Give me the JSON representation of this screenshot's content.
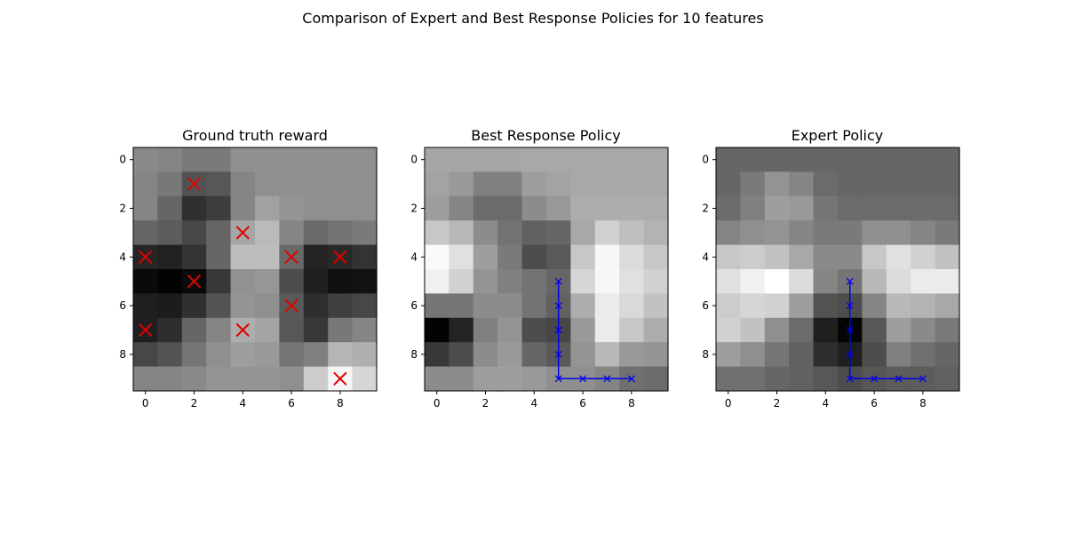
{
  "figure": {
    "title": "Comparison of Expert and Best Response Policies for 10 features"
  },
  "colors": {
    "marker": "#e00000",
    "path": "#0000ee",
    "frame": "#000000"
  },
  "chart_data": [
    {
      "type": "heatmap",
      "title": "Ground truth reward",
      "colormap": "gray",
      "xticks": [
        0,
        2,
        4,
        6,
        8
      ],
      "yticks": [
        0,
        2,
        4,
        6,
        8
      ],
      "xlim": [
        -0.5,
        9.5
      ],
      "ylim": [
        9.5,
        -0.5
      ],
      "grid": false,
      "values": [
        [
          0.54,
          0.52,
          0.48,
          0.48,
          0.56,
          0.56,
          0.56,
          0.56,
          0.56,
          0.56
        ],
        [
          0.52,
          0.47,
          0.32,
          0.34,
          0.52,
          0.56,
          0.56,
          0.56,
          0.56,
          0.56
        ],
        [
          0.52,
          0.4,
          0.19,
          0.24,
          0.52,
          0.63,
          0.58,
          0.56,
          0.56,
          0.56
        ],
        [
          0.4,
          0.36,
          0.28,
          0.4,
          0.65,
          0.73,
          0.52,
          0.41,
          0.45,
          0.48
        ],
        [
          0.15,
          0.13,
          0.2,
          0.4,
          0.74,
          0.74,
          0.41,
          0.14,
          0.16,
          0.2
        ],
        [
          0.04,
          0.01,
          0.04,
          0.22,
          0.57,
          0.59,
          0.3,
          0.12,
          0.06,
          0.07
        ],
        [
          0.12,
          0.11,
          0.19,
          0.33,
          0.58,
          0.56,
          0.35,
          0.18,
          0.25,
          0.28
        ],
        [
          0.12,
          0.18,
          0.4,
          0.52,
          0.68,
          0.64,
          0.34,
          0.22,
          0.47,
          0.52
        ],
        [
          0.28,
          0.33,
          0.46,
          0.56,
          0.62,
          0.6,
          0.46,
          0.5,
          0.71,
          0.69
        ],
        [
          0.52,
          0.52,
          0.54,
          0.58,
          0.58,
          0.58,
          0.56,
          0.8,
          0.96,
          0.84
        ]
      ],
      "markers": [
        {
          "x": 2,
          "y": 1
        },
        {
          "x": 4,
          "y": 3
        },
        {
          "x": 0,
          "y": 4
        },
        {
          "x": 6,
          "y": 4
        },
        {
          "x": 8,
          "y": 4
        },
        {
          "x": 2,
          "y": 5
        },
        {
          "x": 6,
          "y": 6
        },
        {
          "x": 0,
          "y": 7
        },
        {
          "x": 4,
          "y": 7
        },
        {
          "x": 8,
          "y": 9
        }
      ]
    },
    {
      "type": "heatmap",
      "title": "Best Response Policy",
      "colormap": "gray",
      "xticks": [
        0,
        2,
        4,
        6,
        8
      ],
      "yticks": [
        0,
        2,
        4,
        6,
        8
      ],
      "xlim": [
        -0.5,
        9.5
      ],
      "ylim": [
        9.5,
        -0.5
      ],
      "grid": false,
      "values": [
        [
          0.65,
          0.65,
          0.65,
          0.65,
          0.66,
          0.66,
          0.66,
          0.66,
          0.66,
          0.66
        ],
        [
          0.64,
          0.6,
          0.5,
          0.5,
          0.62,
          0.64,
          0.66,
          0.66,
          0.66,
          0.66
        ],
        [
          0.62,
          0.52,
          0.42,
          0.42,
          0.55,
          0.6,
          0.68,
          0.68,
          0.68,
          0.68
        ],
        [
          0.78,
          0.72,
          0.55,
          0.45,
          0.38,
          0.4,
          0.66,
          0.82,
          0.75,
          0.7
        ],
        [
          0.98,
          0.88,
          0.62,
          0.48,
          0.3,
          0.35,
          0.78,
          0.97,
          0.86,
          0.78
        ],
        [
          0.94,
          0.82,
          0.58,
          0.5,
          0.45,
          0.4,
          0.84,
          0.97,
          0.88,
          0.82
        ],
        [
          0.46,
          0.46,
          0.55,
          0.55,
          0.45,
          0.38,
          0.68,
          0.92,
          0.85,
          0.76
        ],
        [
          0.01,
          0.14,
          0.5,
          0.58,
          0.3,
          0.28,
          0.6,
          0.92,
          0.78,
          0.68
        ],
        [
          0.22,
          0.3,
          0.55,
          0.6,
          0.4,
          0.35,
          0.58,
          0.72,
          0.6,
          0.58
        ],
        [
          0.55,
          0.55,
          0.62,
          0.62,
          0.6,
          0.56,
          0.56,
          0.52,
          0.44,
          0.42
        ]
      ],
      "path": {
        "x": [
          5,
          5,
          5,
          5,
          5,
          6,
          7,
          8
        ],
        "y": [
          5,
          6,
          7,
          8,
          9,
          9,
          9,
          9
        ]
      }
    },
    {
      "type": "heatmap",
      "title": "Expert Policy",
      "colormap": "gray",
      "xticks": [
        0,
        2,
        4,
        6,
        8
      ],
      "yticks": [
        0,
        2,
        4,
        6,
        8
      ],
      "xlim": [
        -0.5,
        9.5
      ],
      "ylim": [
        9.5,
        -0.5
      ],
      "grid": false,
      "values": [
        [
          0.4,
          0.4,
          0.4,
          0.4,
          0.4,
          0.4,
          0.4,
          0.4,
          0.4,
          0.4
        ],
        [
          0.4,
          0.48,
          0.58,
          0.52,
          0.42,
          0.4,
          0.4,
          0.4,
          0.4,
          0.4
        ],
        [
          0.42,
          0.5,
          0.62,
          0.6,
          0.46,
          0.42,
          0.42,
          0.42,
          0.42,
          0.42
        ],
        [
          0.52,
          0.56,
          0.58,
          0.52,
          0.48,
          0.48,
          0.56,
          0.56,
          0.52,
          0.48
        ],
        [
          0.78,
          0.8,
          0.76,
          0.66,
          0.54,
          0.54,
          0.78,
          0.88,
          0.82,
          0.76
        ],
        [
          0.88,
          0.94,
          1.0,
          0.86,
          0.52,
          0.46,
          0.72,
          0.86,
          0.92,
          0.92
        ],
        [
          0.8,
          0.84,
          0.82,
          0.62,
          0.32,
          0.3,
          0.52,
          0.72,
          0.7,
          0.66
        ],
        [
          0.82,
          0.76,
          0.56,
          0.42,
          0.12,
          0.02,
          0.34,
          0.62,
          0.54,
          0.48
        ],
        [
          0.62,
          0.56,
          0.46,
          0.38,
          0.18,
          0.12,
          0.3,
          0.5,
          0.44,
          0.4
        ],
        [
          0.44,
          0.44,
          0.4,
          0.38,
          0.34,
          0.3,
          0.34,
          0.36,
          0.36,
          0.38
        ]
      ],
      "path": {
        "x": [
          5,
          5,
          5,
          5,
          5,
          6,
          7,
          8
        ],
        "y": [
          5,
          6,
          7,
          8,
          9,
          9,
          9,
          9
        ]
      }
    }
  ]
}
